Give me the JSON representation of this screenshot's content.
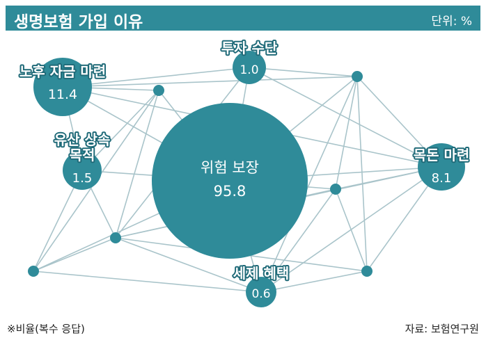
{
  "header": {
    "title": "생명보험 가입 이유",
    "unit": "단위: %"
  },
  "chart_data": {
    "type": "bubble",
    "title": "생명보험 가입 이유",
    "unit": "%",
    "series": [
      {
        "name": "위험 보장",
        "value": 95.8
      },
      {
        "name": "노후 자금 마련",
        "value": 11.4
      },
      {
        "name": "목돈 마련",
        "value": 8.1
      },
      {
        "name": "유산 상속 목적",
        "value": 1.5
      },
      {
        "name": "투자 수단",
        "value": 1.0
      },
      {
        "name": "세제 혜택",
        "value": 0.6
      }
    ]
  },
  "colors": {
    "bubble": "#2f8b99",
    "line": "#a9c4ca",
    "header": "#2f8b99",
    "outline": "#1f6a78"
  },
  "footer": {
    "note": "※비율(복수 응답)",
    "source": "자료: 보험연구원"
  }
}
